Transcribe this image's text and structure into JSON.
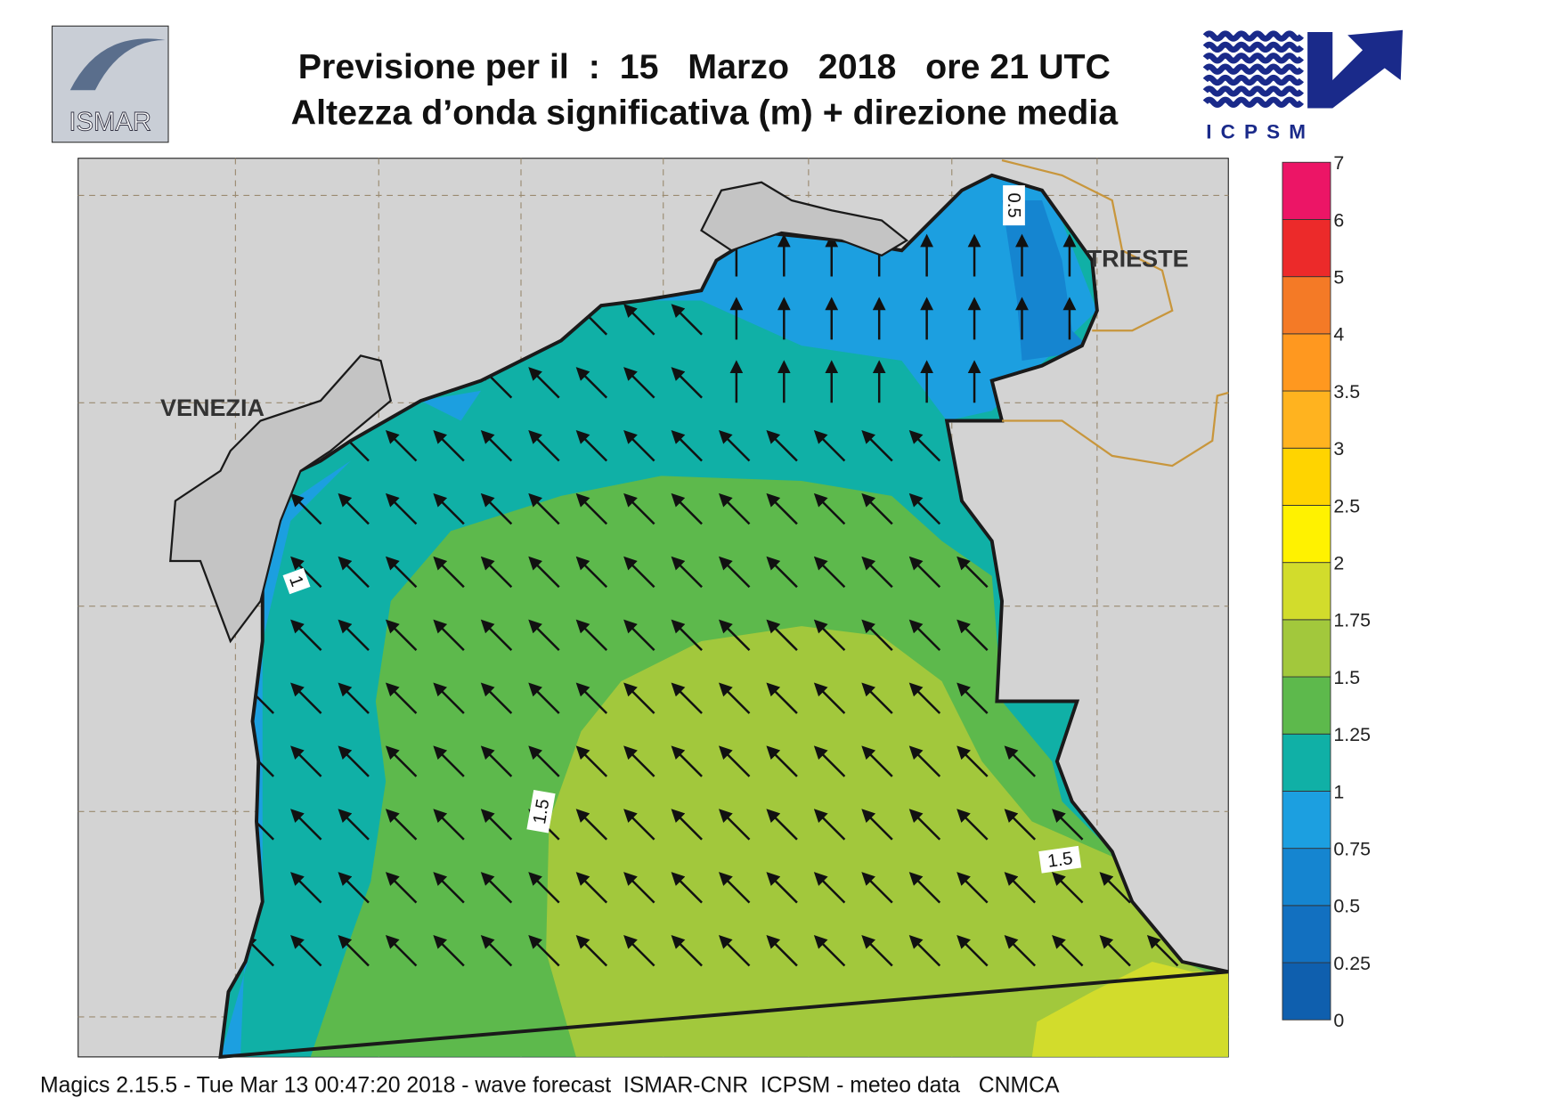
{
  "header": {
    "title": "Previsione per il  :  15   Marzo   2018   ore 21 UTC",
    "subtitle": "Altezza d’onda significativa (m) + direzione media",
    "logo_left": "ISMAR",
    "logo_right": "ICPSM"
  },
  "map": {
    "places": [
      "VENEZIA",
      "TRIESTE"
    ],
    "contour_labels": [
      "0.5",
      "1",
      "1.5",
      "1.5"
    ]
  },
  "legend": {
    "labels": [
      "0",
      "0.25",
      "0.5",
      "0.75",
      "1",
      "1.25",
      "1.5",
      "1.75",
      "2",
      "2.5",
      "3",
      "3.5",
      "4",
      "5",
      "6",
      "7"
    ],
    "colors": [
      "#0f5fae",
      "#1270c0",
      "#1585d0",
      "#1c9fe0",
      "#10b0a6",
      "#5db94c",
      "#a2c83c",
      "#d2dc2c",
      "#fff200",
      "#ffd400",
      "#ffb31f",
      "#ff981f",
      "#f47a26",
      "#ec2a2a",
      "#ec1566"
    ]
  },
  "footer": "Magics 2.15.5 - Tue Mar 13 00:47:20 2018 - wave forecast  ISMAR-CNR  ICPSM - meteo data   CNMCA"
}
